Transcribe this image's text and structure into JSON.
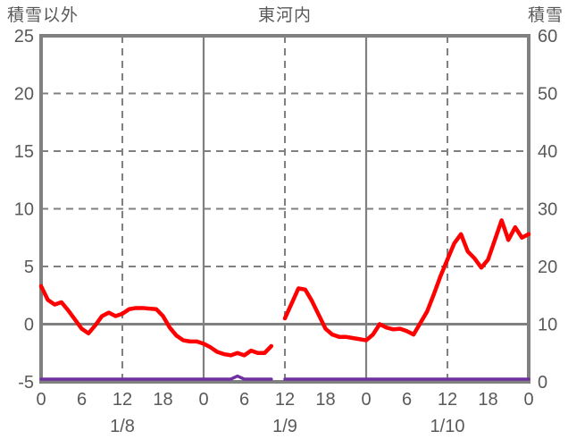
{
  "header": {
    "left_axis_title": "積雪以外",
    "station_title": "東河内",
    "right_axis_title": "積雪"
  },
  "colors": {
    "grid": "#808080",
    "text": "#595959",
    "temperature_line": "#ff0000",
    "snow_line": "#7030a0",
    "background": "#ffffff"
  },
  "chart_data": {
    "type": "line",
    "title": "東河内",
    "x_unit": "hour",
    "x_range": [
      0,
      72
    ],
    "x_tick_interval": 6,
    "x_tick_labels": [
      "0",
      "6",
      "12",
      "18",
      "0",
      "6",
      "12",
      "18",
      "0",
      "6",
      "12",
      "18",
      "0"
    ],
    "date_labels": [
      {
        "label": "1/8",
        "hour": 12
      },
      {
        "label": "1/9",
        "hour": 36
      },
      {
        "label": "1/10",
        "hour": 60
      }
    ],
    "left_axis": {
      "title": "積雪以外",
      "min": -5,
      "max": 25,
      "ticks": [
        25,
        20,
        15,
        10,
        5,
        0,
        -5
      ]
    },
    "right_axis": {
      "title": "積雪",
      "min": 0,
      "max": 60,
      "ticks": [
        60,
        50,
        40,
        30,
        20,
        10,
        0
      ]
    },
    "gridlines": {
      "vertical_dashed_hours": [
        12,
        36,
        60
      ],
      "vertical_solid_hours": [
        24,
        48
      ],
      "horizontal_dashed_values": [
        20,
        15,
        10,
        5
      ],
      "horizontal_solid_values": [
        0
      ]
    },
    "series": [
      {
        "name": "積雪以外",
        "axis": "left",
        "color": "#ff0000",
        "width": 4.5,
        "values": [
          3.3,
          2.1,
          1.7,
          1.9,
          1.2,
          0.4,
          -0.4,
          -0.8,
          -0.1,
          0.7,
          1.0,
          0.7,
          0.9,
          1.3,
          1.4,
          1.4,
          1.35,
          1.3,
          0.7,
          -0.3,
          -1.0,
          -1.4,
          -1.5,
          -1.5,
          -1.7,
          -2.0,
          -2.4,
          -2.6,
          -2.7,
          -2.5,
          -2.7,
          -2.3,
          -2.5,
          -2.5,
          -1.9,
          null,
          0.5,
          1.8,
          3.1,
          3.0,
          2.0,
          0.8,
          -0.4,
          -0.9,
          -1.1,
          -1.1,
          -1.2,
          -1.3,
          -1.4,
          -0.9,
          0.0,
          -0.3,
          -0.45,
          -0.4,
          -0.6,
          -0.9,
          0.1,
          1.1,
          2.6,
          4.2,
          5.6,
          7.0,
          7.8,
          6.3,
          5.7,
          4.9,
          5.6,
          7.3,
          9.0,
          7.3,
          8.4,
          7.5,
          7.8
        ]
      },
      {
        "name": "積雪",
        "axis": "right",
        "color": "#7030a0",
        "width": 3.5,
        "values": [
          0,
          0,
          0,
          0,
          0,
          0,
          0,
          0,
          0,
          0,
          0,
          0,
          0,
          0,
          0,
          0,
          0,
          0,
          0,
          0,
          0,
          0,
          0,
          0,
          0,
          0,
          0,
          0,
          0,
          1,
          0,
          0,
          0,
          0,
          0,
          null,
          0,
          0,
          0,
          0,
          0,
          0,
          0,
          0,
          0,
          0,
          0,
          0,
          0,
          0,
          0,
          0,
          0,
          0,
          0,
          0,
          0,
          0,
          0,
          0,
          0,
          0,
          0,
          0,
          0,
          0,
          0,
          0,
          0,
          0,
          0,
          0,
          0
        ]
      }
    ]
  }
}
